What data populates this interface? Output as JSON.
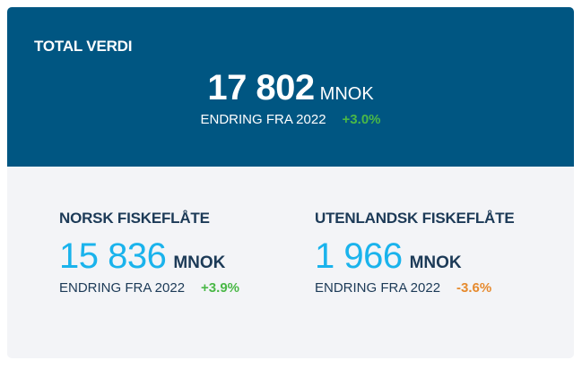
{
  "total": {
    "title": "TOTAL VERDI",
    "value": "17 802",
    "unit": "MNOK",
    "change_label": "ENDRING FRA 2022",
    "change_value": "+3.0%"
  },
  "norsk": {
    "title": "NORSK FISKEFLÅTE",
    "value": "15 836",
    "unit": "MNOK",
    "change_label": "ENDRING FRA 2022",
    "change_value": "+3.9%"
  },
  "utenlandsk": {
    "title": "UTENLANDSK FISKEFLÅTE",
    "value": "1 966",
    "unit": "MNOK",
    "change_label": "ENDRING FRA 2022",
    "change_value": "-3.6%"
  },
  "colors": {
    "header_bg": "#005682",
    "panel_bg": "#f3f4f7",
    "accent_value": "#1ab3ec",
    "positive": "#4ab847",
    "negative": "#e68a2e",
    "dark_text": "#1c3a57"
  }
}
